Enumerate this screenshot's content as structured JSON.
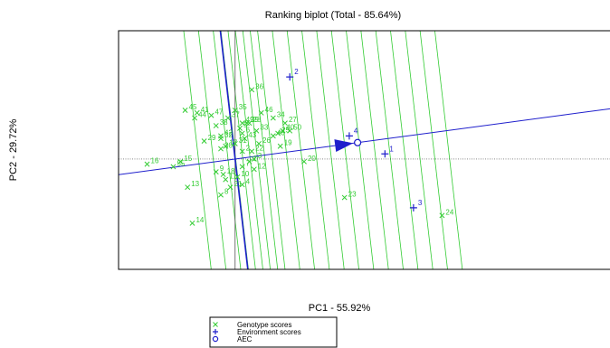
{
  "chart_data": {
    "type": "scatter",
    "title": "Ranking biplot (Total - 85.64%)",
    "xlabel": "PC1 - 55.92%",
    "ylabel": "PC2 - 29.72%",
    "xlim": [
      -4.9,
      15.8
    ],
    "ylim": [
      -4.3,
      5.0
    ],
    "grid": false,
    "legend_position": "bottom-center",
    "colors": {
      "genotype": "#33cc33",
      "environment": "#1f1fcc",
      "aec": "#1f1fcc",
      "axis_ref": "#555555"
    },
    "legend": {
      "items": [
        {
          "label": "Genotype scores",
          "marker": "x",
          "color": "#33cc33"
        },
        {
          "label": "Environment scores",
          "marker": "+",
          "color": "#1f1fcc"
        },
        {
          "label": "AEC",
          "marker": "o",
          "color": "#1f1fcc"
        }
      ]
    },
    "aec": {
      "x": 5.15,
      "y": 0.64
    },
    "aec_projection_slope": 0.1243,
    "aec_orthogonal_slope": -8.05,
    "perpendicular_offsets": [
      -12.4,
      -7.4,
      -2.4,
      0.2,
      2.6,
      5.1,
      7.6,
      10.1,
      12.6,
      17.6,
      22.6,
      27.6,
      32.6,
      37.6,
      42.6,
      47.6,
      52.6,
      57.6,
      62.6,
      67.6,
      72.6
    ],
    "environments": [
      {
        "label": "1",
        "x": 6.3,
        "y": 0.2
      },
      {
        "label": "2",
        "x": 2.3,
        "y": 3.2
      },
      {
        "label": "3",
        "x": 7.5,
        "y": -1.9
      },
      {
        "label": "4",
        "x": 4.8,
        "y": 0.9
      }
    ],
    "genotypes": [
      {
        "label": "1",
        "x": 0.6,
        "y": -0.1
      },
      {
        "label": "2",
        "x": 0.3,
        "y": 0.3
      },
      {
        "label": "3",
        "x": 0.8,
        "y": 0.0
      },
      {
        "label": "4",
        "x": 0.3,
        "y": -1.0
      },
      {
        "label": "5",
        "x": 0.2,
        "y": 1.2
      },
      {
        "label": "6",
        "x": 0.3,
        "y": 1.0
      },
      {
        "label": "7",
        "x": 0.3,
        "y": -0.3
      },
      {
        "label": "8",
        "x": -0.6,
        "y": -1.4
      },
      {
        "label": "9",
        "x": -0.8,
        "y": -0.5
      },
      {
        "label": "10",
        "x": 0.1,
        "y": -0.7
      },
      {
        "label": "11",
        "x": -0.4,
        "y": -0.8
      },
      {
        "label": "12",
        "x": 0.8,
        "y": -0.4
      },
      {
        "label": "13",
        "x": -2.0,
        "y": -1.1
      },
      {
        "label": "14",
        "x": -1.8,
        "y": -2.5
      },
      {
        "label": "15",
        "x": -2.3,
        "y": -0.1
      },
      {
        "label": "16",
        "x": -3.7,
        "y": -0.2
      },
      {
        "label": "17",
        "x": -0.4,
        "y": 0.5
      },
      {
        "label": "18",
        "x": -0.5,
        "y": -0.6
      },
      {
        "label": "19",
        "x": 1.9,
        "y": 0.5
      },
      {
        "label": "20",
        "x": 2.9,
        "y": -0.1
      },
      {
        "label": "21",
        "x": -0.2,
        "y": -1.1
      },
      {
        "label": "22",
        "x": 0.7,
        "y": 0.3
      },
      {
        "label": "23",
        "x": 4.6,
        "y": -1.5
      },
      {
        "label": "24",
        "x": 8.7,
        "y": -2.2
      },
      {
        "label": "25",
        "x": 1.8,
        "y": 1.0
      },
      {
        "label": "26",
        "x": 1.0,
        "y": 0.6
      },
      {
        "label": "27",
        "x": 2.1,
        "y": 1.4
      },
      {
        "label": "28",
        "x": 0.6,
        "y": 1.4
      },
      {
        "label": "29",
        "x": -1.3,
        "y": 0.7
      },
      {
        "label": "30",
        "x": -0.6,
        "y": 0.4
      },
      {
        "label": "31",
        "x": 0.0,
        "y": 0.6
      },
      {
        "label": "32",
        "x": -0.6,
        "y": 0.8
      },
      {
        "label": "33",
        "x": 0.9,
        "y": 1.1
      },
      {
        "label": "34",
        "x": 1.6,
        "y": 1.6
      },
      {
        "label": "35",
        "x": 0.0,
        "y": 1.9
      },
      {
        "label": "36",
        "x": 0.7,
        "y": 2.7
      },
      {
        "label": "37",
        "x": -0.3,
        "y": 1.6
      },
      {
        "label": "38",
        "x": -0.8,
        "y": 1.3
      },
      {
        "label": "39",
        "x": 0.5,
        "y": 1.4
      },
      {
        "label": "40",
        "x": 2.0,
        "y": 1.1
      },
      {
        "label": "41",
        "x": -1.6,
        "y": 1.8
      },
      {
        "label": "42",
        "x": -0.6,
        "y": 0.9
      },
      {
        "label": "43",
        "x": 0.4,
        "y": 0.8
      },
      {
        "label": "44",
        "x": -1.7,
        "y": 1.6
      },
      {
        "label": "45",
        "x": -2.1,
        "y": 1.9
      },
      {
        "label": "46",
        "x": 1.1,
        "y": 1.8
      },
      {
        "label": "47",
        "x": -1.0,
        "y": 1.7
      },
      {
        "label": "48",
        "x": 1.6,
        "y": 0.9
      },
      {
        "label": "49",
        "x": 0.3,
        "y": 1.4
      },
      {
        "label": "50",
        "x": 2.3,
        "y": 1.1
      },
      {
        "label": "55",
        "x": -2.6,
        "y": -0.3
      }
    ]
  }
}
